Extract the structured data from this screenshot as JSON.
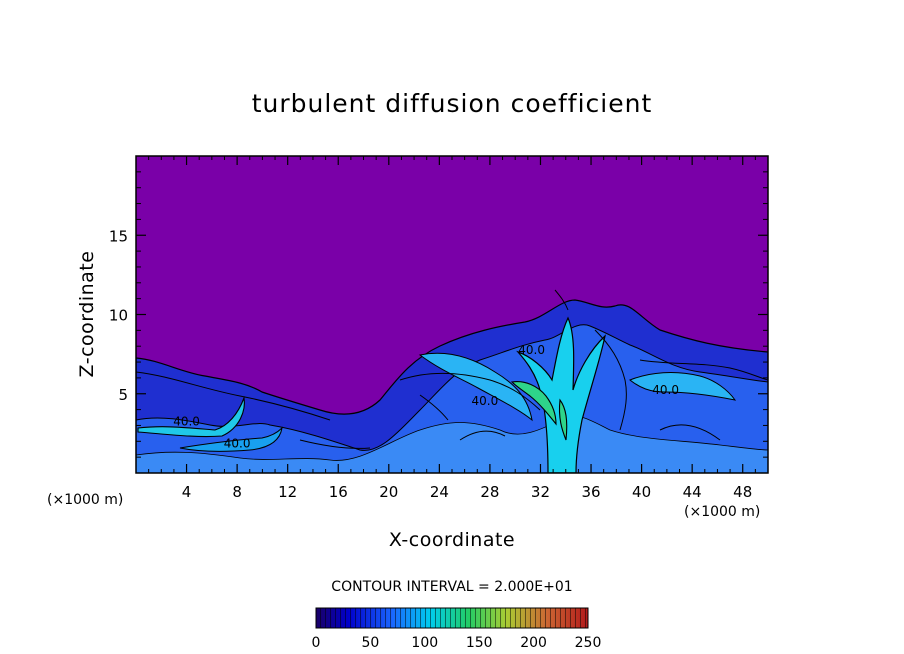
{
  "chart_data": {
    "type": "heatmap",
    "title": "turbulent diffusion coefficient",
    "xlabel": "X-coordinate",
    "ylabel": "Z-coordinate",
    "x_units": "(×1000 m)",
    "x_units_right": "(×1000 m)",
    "xlim": [
      0,
      50
    ],
    "ylim": [
      0,
      20
    ],
    "x_ticks": [
      4,
      8,
      12,
      16,
      20,
      24,
      28,
      32,
      36,
      40,
      44,
      48
    ],
    "y_ticks": [
      5,
      10,
      15
    ],
    "contour_interval_text": "CONTOUR INTERVAL = 2.000E+01",
    "colorbar": {
      "range": [
        0,
        250
      ],
      "ticks": [
        0,
        50,
        100,
        150,
        200,
        250
      ],
      "colors": [
        "#1a0066",
        "#0000cc",
        "#1a66ff",
        "#00ccee",
        "#22cc66",
        "#aacc33",
        "#cc6633",
        "#b31a1a"
      ]
    },
    "background_value": 0,
    "background_color": "#7a00a8",
    "contour_labels": [
      {
        "text": "40.0",
        "x": 4.0,
        "y": 3.0
      },
      {
        "text": "40.0",
        "x": 8.0,
        "y": 1.6
      },
      {
        "text": "40.0",
        "x": 31.3,
        "y": 7.5
      },
      {
        "text": "40.0",
        "x": 27.6,
        "y": 4.3
      },
      {
        "text": "40.0",
        "x": 41.9,
        "y": 5.0
      }
    ]
  }
}
